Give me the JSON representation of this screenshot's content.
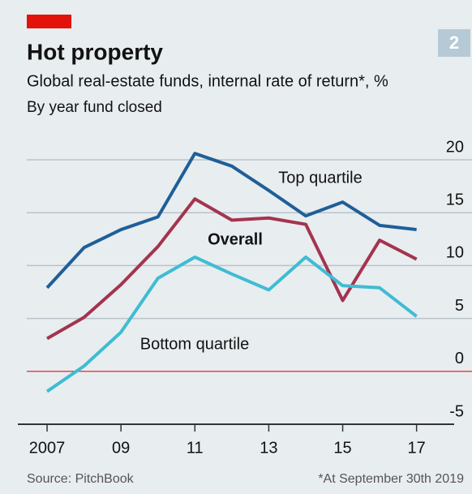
{
  "chart_data": {
    "type": "line",
    "title": "Hot property",
    "subtitle": "Global real-estate funds, internal rate of return*, %",
    "note": "By year fund closed",
    "badge": "2",
    "source": "Source: PitchBook",
    "footnote": "*At September 30th 2019",
    "x": [
      2007,
      2008,
      2009,
      2010,
      2011,
      2012,
      2013,
      2014,
      2015,
      2016,
      2017
    ],
    "series": [
      {
        "name": "Top quartile",
        "color": "#1f5f98",
        "values": [
          7.9,
          11.7,
          13.4,
          14.6,
          20.6,
          19.4,
          17.1,
          14.7,
          16.0,
          13.8,
          13.4
        ]
      },
      {
        "name": "Overall",
        "color": "#a3344f",
        "values": [
          3.1,
          5.1,
          8.2,
          11.8,
          16.3,
          14.3,
          14.5,
          13.9,
          6.7,
          12.4,
          10.6
        ]
      },
      {
        "name": "Bottom quartile",
        "color": "#3fbcd2",
        "values": [
          -1.9,
          0.5,
          3.7,
          8.8,
          10.8,
          9.2,
          7.7,
          10.8,
          8.1,
          7.9,
          5.2
        ]
      }
    ],
    "xlim": [
      2006.45,
      2018.5
    ],
    "xticks": [
      {
        "value": 2007,
        "label": "2007"
      },
      {
        "value": 2009,
        "label": "09"
      },
      {
        "value": 2011,
        "label": "11"
      },
      {
        "value": 2013,
        "label": "13"
      },
      {
        "value": 2015,
        "label": "15"
      },
      {
        "value": 2017,
        "label": "17"
      }
    ],
    "ylim": [
      -5,
      20
    ],
    "yticks": [
      -5,
      0,
      5,
      10,
      15,
      20
    ],
    "grid": true
  }
}
